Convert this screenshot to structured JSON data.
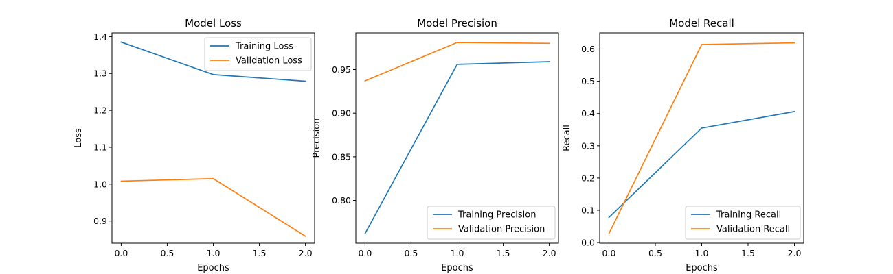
{
  "chart_data": [
    {
      "type": "line",
      "title": "Model Loss",
      "xlabel": "Epochs",
      "ylabel": "Loss",
      "xlim": [
        -0.1,
        2.1
      ],
      "ylim": [
        0.84,
        1.41
      ],
      "xticks": [
        0.0,
        0.5,
        1.0,
        1.5,
        2.0
      ],
      "xtick_labels": [
        "0.0",
        "0.5",
        "1.0",
        "1.5",
        "2.0"
      ],
      "yticks": [
        0.9,
        1.0,
        1.1,
        1.2,
        1.3,
        1.4
      ],
      "ytick_labels": [
        "0.9",
        "1.0",
        "1.1",
        "1.2",
        "1.3",
        "1.4"
      ],
      "legend_position": "upper right",
      "grid": false,
      "x": [
        0,
        1,
        2
      ],
      "series": [
        {
          "name": "Training Loss",
          "color": "#1f77b4",
          "values": [
            1.385,
            1.297,
            1.279
          ]
        },
        {
          "name": "Validation Loss",
          "color": "#ff7f0e",
          "values": [
            1.008,
            1.015,
            0.859
          ]
        }
      ]
    },
    {
      "type": "line",
      "title": "Model Precision",
      "xlabel": "Epochs",
      "ylabel": "Precision",
      "xlim": [
        -0.1,
        2.1
      ],
      "ylim": [
        0.751,
        0.992
      ],
      "xticks": [
        0.0,
        0.5,
        1.0,
        1.5,
        2.0
      ],
      "xtick_labels": [
        "0.0",
        "0.5",
        "1.0",
        "1.5",
        "2.0"
      ],
      "yticks": [
        0.8,
        0.85,
        0.9,
        0.95
      ],
      "ytick_labels": [
        "0.80",
        "0.85",
        "0.90",
        "0.95"
      ],
      "legend_position": "lower right",
      "grid": false,
      "x": [
        0,
        1,
        2
      ],
      "series": [
        {
          "name": "Training Precision",
          "color": "#1f77b4",
          "values": [
            0.762,
            0.956,
            0.959
          ]
        },
        {
          "name": "Validation Precision",
          "color": "#ff7f0e",
          "values": [
            0.937,
            0.981,
            0.98
          ]
        }
      ]
    },
    {
      "type": "line",
      "title": "Model Recall",
      "xlabel": "Epochs",
      "ylabel": "Recall",
      "xlim": [
        -0.1,
        2.1
      ],
      "ylim": [
        -0.002,
        0.65
      ],
      "xticks": [
        0.0,
        0.5,
        1.0,
        1.5,
        2.0
      ],
      "xtick_labels": [
        "0.0",
        "0.5",
        "1.0",
        "1.5",
        "2.0"
      ],
      "yticks": [
        0.0,
        0.1,
        0.2,
        0.3,
        0.4,
        0.5,
        0.6
      ],
      "ytick_labels": [
        "0.0",
        "0.1",
        "0.2",
        "0.3",
        "0.4",
        "0.5",
        "0.6"
      ],
      "legend_position": "lower right",
      "grid": false,
      "x": [
        0,
        1,
        2
      ],
      "series": [
        {
          "name": "Training Recall",
          "color": "#1f77b4",
          "values": [
            0.078,
            0.355,
            0.406
          ]
        },
        {
          "name": "Validation Recall",
          "color": "#ff7f0e",
          "values": [
            0.028,
            0.614,
            0.619
          ]
        }
      ]
    }
  ]
}
